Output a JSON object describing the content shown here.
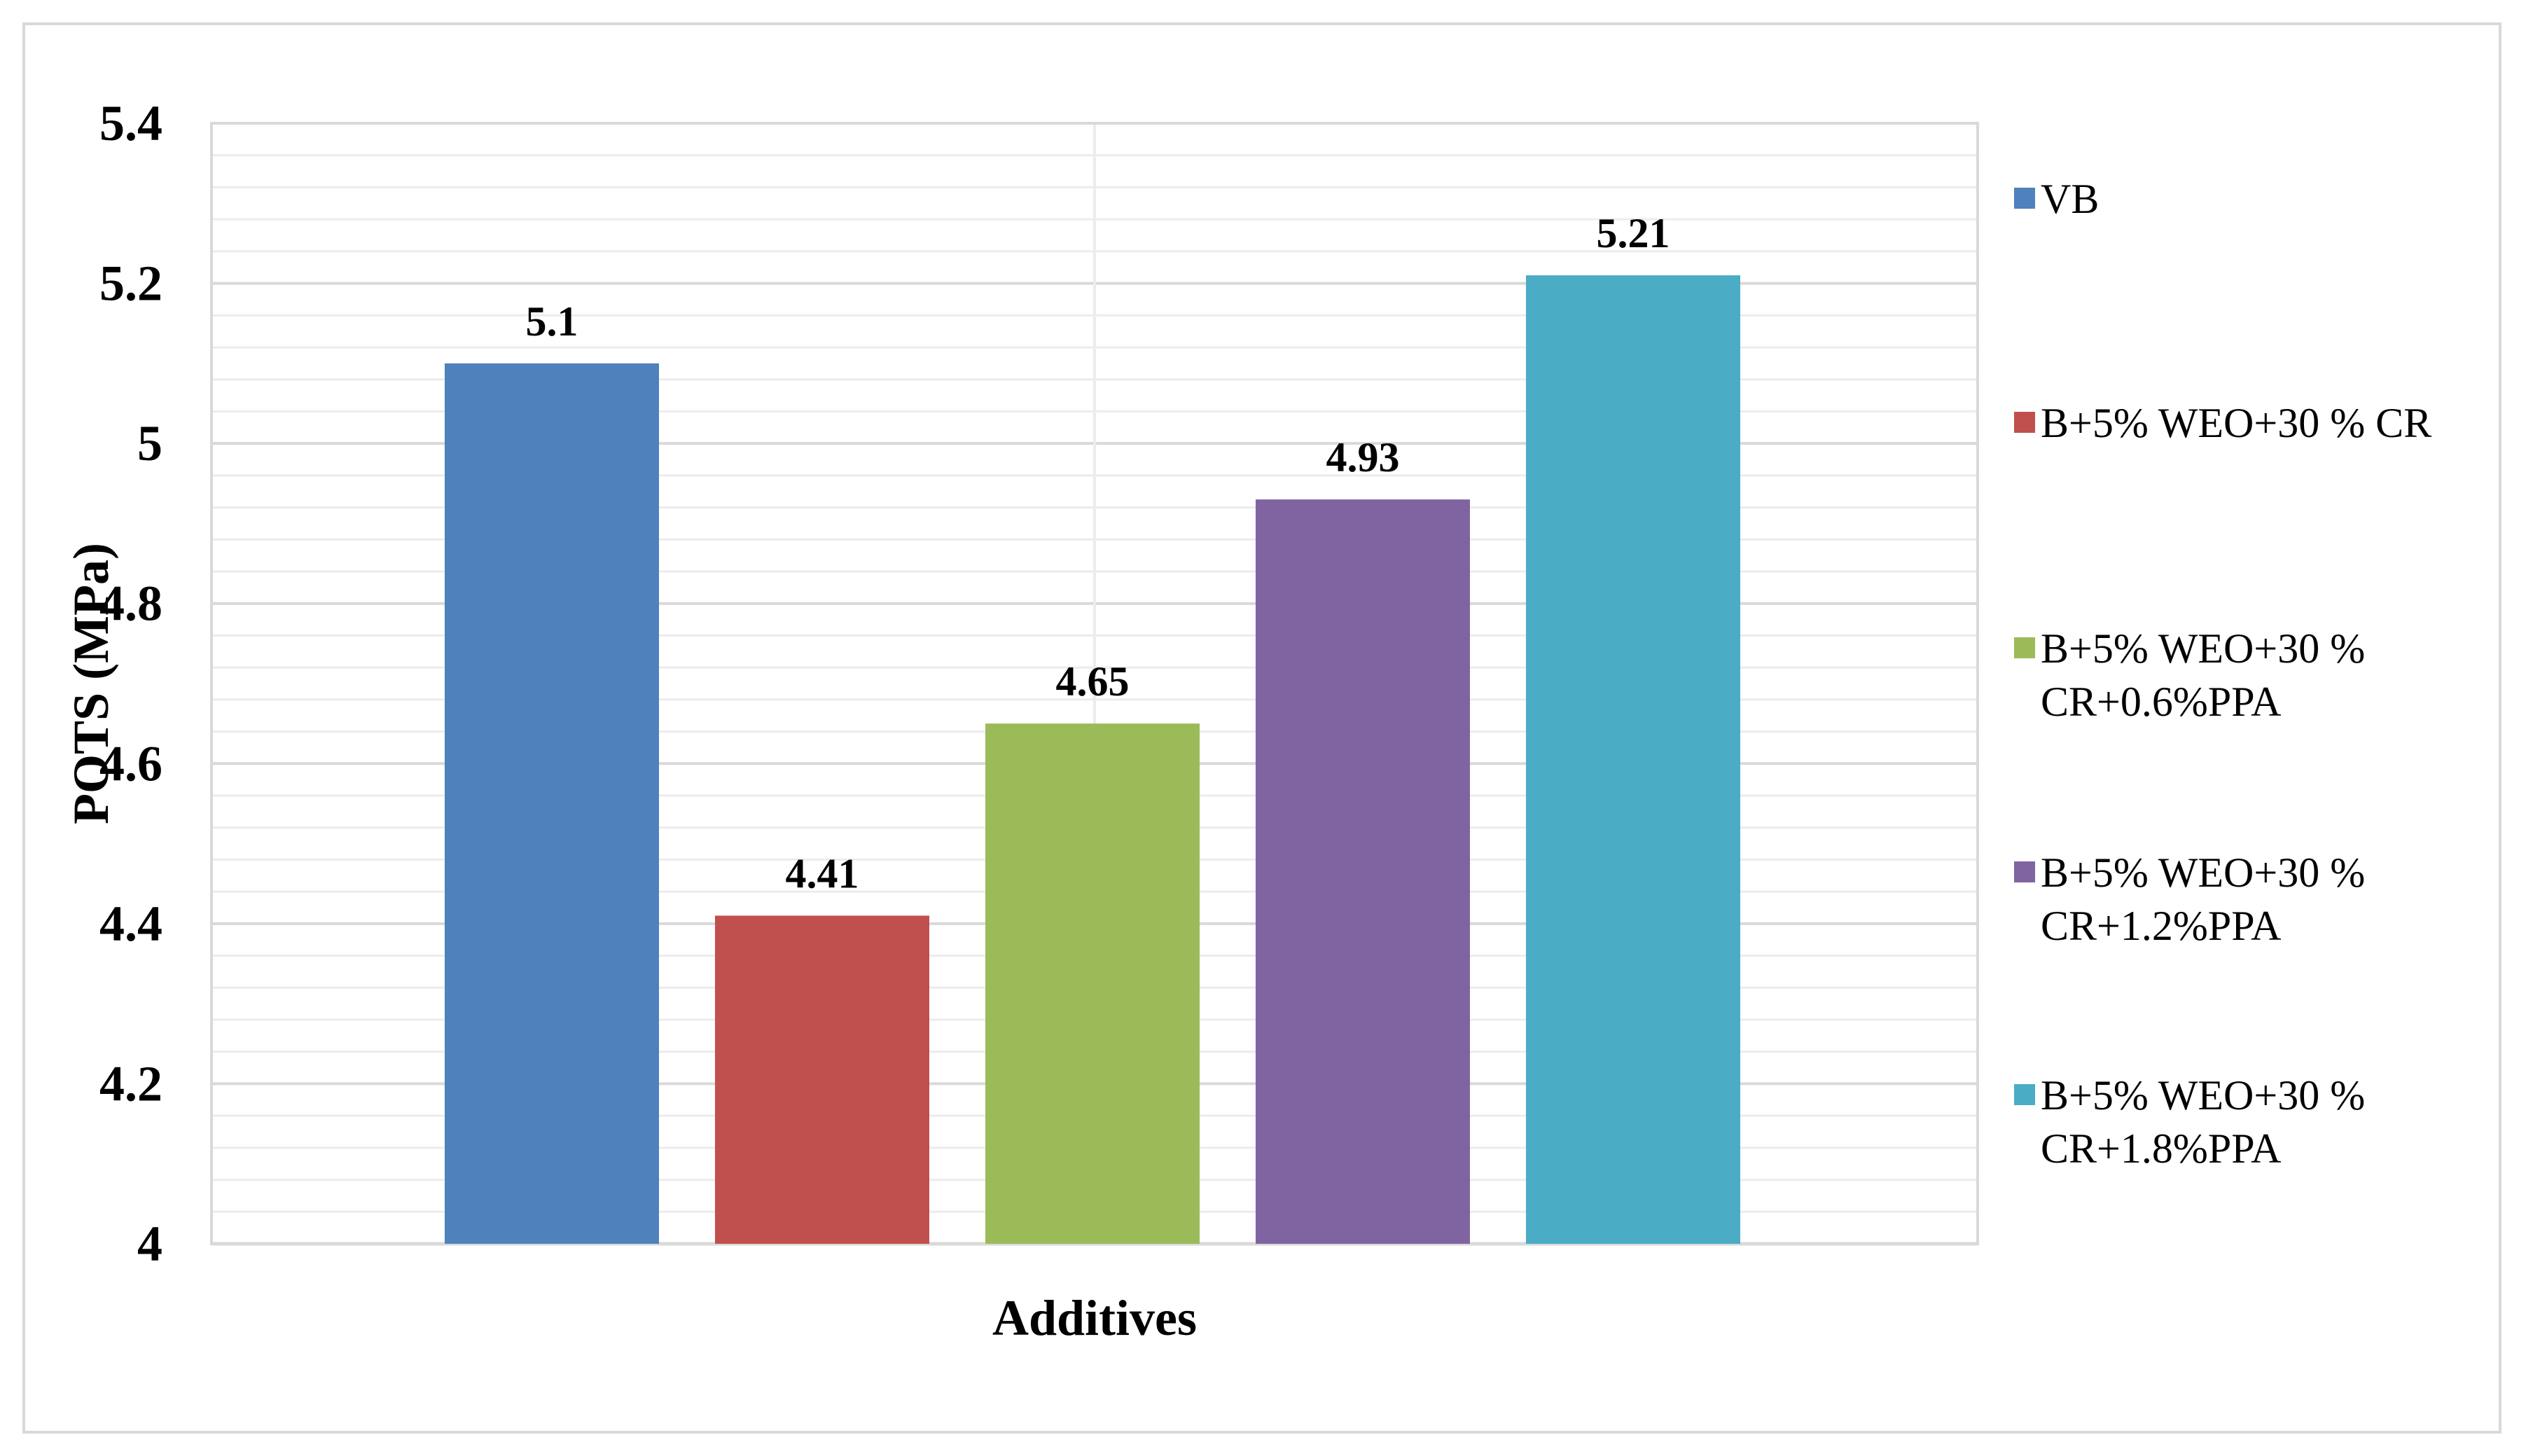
{
  "chart_data": {
    "type": "bar",
    "title": "",
    "xlabel": "Additives",
    "ylabel": "POTS (MPa)",
    "ylim": [
      4,
      5.4
    ],
    "yticks": [
      "4",
      "4.2",
      "4.4",
      "4.6",
      "4.8",
      "5",
      "5.2",
      "5.4"
    ],
    "grid": true,
    "legend_position": "right",
    "series": [
      {
        "name": "VB",
        "legend_lines": [
          "VB"
        ],
        "value": 5.1,
        "label": "5.1",
        "color": "#4f81bd"
      },
      {
        "name": "B+5% WEO+30 % CR",
        "legend_lines": [
          "B+5% WEO+30 % CR"
        ],
        "value": 4.41,
        "label": "4.41",
        "color": "#c0504d"
      },
      {
        "name": "B+5% WEO+30 % CR+0.6%PPA",
        "legend_lines": [
          "B+5% WEO+30 %",
          "CR+0.6%PPA"
        ],
        "value": 4.65,
        "label": "4.65",
        "color": "#9bbb59"
      },
      {
        "name": "B+5% WEO+30 % CR+1.2%PPA",
        "legend_lines": [
          "B+5% WEO+30 %",
          "CR+1.2%PPA"
        ],
        "value": 4.93,
        "label": "4.93",
        "color": "#8064a2"
      },
      {
        "name": "B+5% WEO+30 % CR+1.8%PPA",
        "legend_lines": [
          "B+5% WEO+30 %",
          "CR+1.8%PPA"
        ],
        "value": 5.21,
        "label": "5.21",
        "color": "#4bacc6"
      }
    ]
  }
}
